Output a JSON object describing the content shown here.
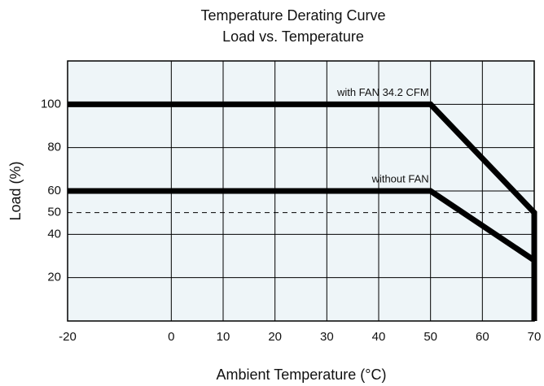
{
  "chart_data": {
    "type": "line",
    "title": "Temperature Derating Curve",
    "subtitle": "Load vs. Temperature",
    "x_label": "Ambient Temperature (°C)",
    "y_label": "Load (%)",
    "x": [
      -20,
      50,
      70,
      70
    ],
    "series": [
      {
        "name": "with FAN 34.2 CFM",
        "color": "#000000",
        "values": [
          100,
          100,
          50,
          0
        ]
      },
      {
        "name": "without FAN",
        "color": "#000000",
        "values": [
          60,
          60,
          28,
          0
        ]
      }
    ],
    "xlim": [
      -20,
      70
    ],
    "xticks": [
      -20,
      0,
      10,
      20,
      30,
      40,
      50,
      60,
      70
    ],
    "ylim": [
      0,
      120
    ],
    "yticks": [
      20,
      40,
      60,
      80,
      100
    ],
    "hline": 50,
    "grid": true
  }
}
